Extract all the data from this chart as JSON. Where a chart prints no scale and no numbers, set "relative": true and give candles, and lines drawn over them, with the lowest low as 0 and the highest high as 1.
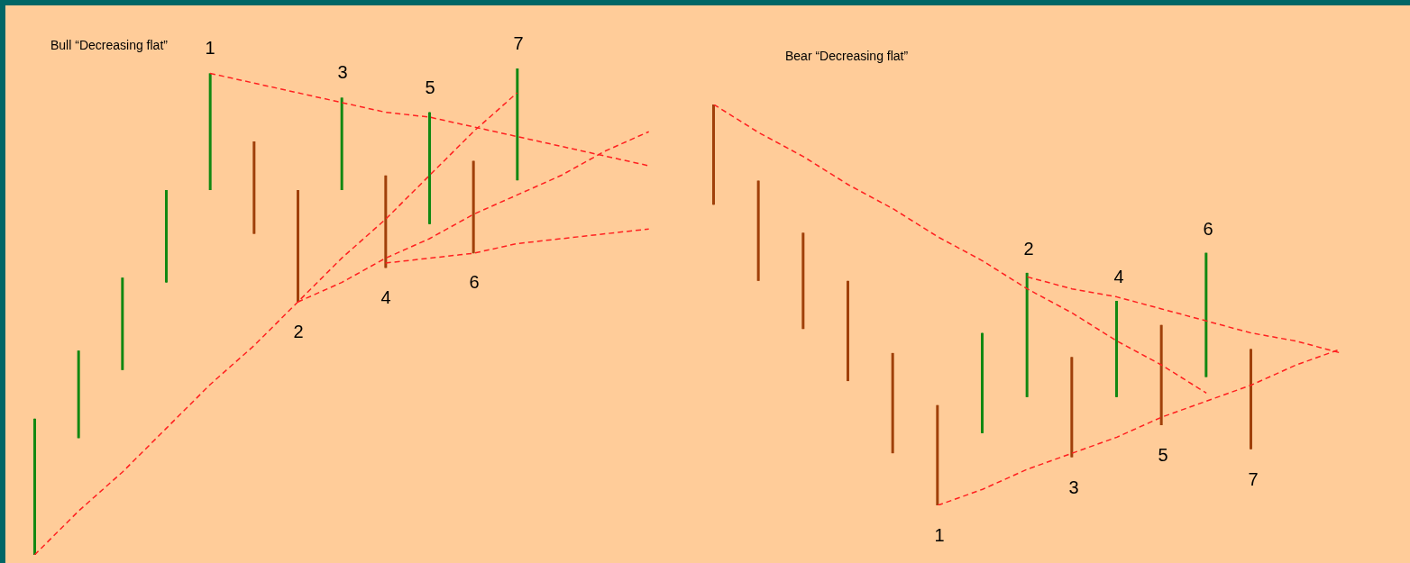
{
  "chart_data": [
    {
      "type": "candlestick",
      "title": "Bull “Decreasing flat”",
      "relative": true,
      "tick_labels": false,
      "categories": [
        null,
        null,
        null,
        null,
        null,
        null,
        null,
        null,
        null,
        null,
        null,
        null,
        null,
        null,
        null
      ],
      "series": [
        {
          "ohlc": [
            [
              0,
              0.28,
              0,
              0.28
            ],
            [
              0.24,
              0.42,
              0.24,
              0.42
            ],
            [
              0.38,
              0.57,
              0.38,
              0.57
            ],
            [
              0.56,
              0.75,
              0.56,
              0.75
            ],
            [
              0.75,
              0.99,
              0.75,
              0.99
            ],
            [
              0.85,
              0.85,
              0.66,
              0.66
            ],
            [
              0.75,
              0.75,
              0.52,
              0.52
            ],
            [
              0.75,
              0.94,
              0.75,
              0.94
            ],
            [
              0.78,
              0.78,
              0.59,
              0.59
            ],
            [
              0.68,
              0.91,
              0.68,
              0.91
            ],
            [
              0.81,
              0.81,
              0.62,
              0.62
            ],
            [
              0.77,
              1,
              0.77,
              1
            ],
            null,
            null,
            null
          ],
          "colors": [
            "#118811",
            "#118811",
            "#118811",
            "#118811",
            "#118811",
            "#a0400a",
            "#a0400a",
            "#118811",
            "#a0400a",
            "#118811",
            "#a0400a",
            "#118811",
            null,
            null,
            null
          ]
        },
        {
          "type": "line",
          "values": [
            null,
            null,
            null,
            null,
            0.99,
            0.97,
            0.95,
            0.93,
            0.91,
            0.9,
            0.88,
            0.86,
            0.84,
            0.82,
            0.8
          ],
          "color": "#ff2020",
          "line_style": "dashed"
        },
        {
          "type": "line",
          "values": [
            0,
            0.09,
            0.17,
            0.26,
            0.35,
            0.43,
            0.52,
            0.61,
            0.69,
            0.78,
            0.87,
            0.95,
            null,
            null,
            null
          ],
          "color": "#ff2020",
          "line_style": "dashed"
        },
        {
          "type": "line",
          "values": [
            null,
            null,
            null,
            null,
            null,
            null,
            0.52,
            0.56,
            0.61,
            0.65,
            0.7,
            0.74,
            0.78,
            0.83,
            0.87
          ],
          "color": "#ff2020",
          "line_style": "dashed"
        },
        {
          "type": "line",
          "values": [
            null,
            null,
            null,
            null,
            null,
            null,
            null,
            null,
            0.6,
            0.61,
            0.62,
            0.64,
            0.65,
            0.66,
            0.67
          ],
          "color": "#ff2020",
          "line_style": "dashed"
        }
      ],
      "annotations": [
        "1",
        "2",
        "3",
        "4",
        "5",
        "6",
        "7"
      ]
    },
    {
      "type": "candlestick",
      "title": "Bear “Decreasing flat”",
      "relative": true,
      "tick_labels": false,
      "categories": [
        null,
        null,
        null,
        null,
        null,
        null,
        null,
        null,
        null,
        null,
        null,
        null,
        null,
        null,
        null
      ],
      "series": [
        {
          "ohlc": [
            [
              1,
              1,
              0.75,
              0.75
            ],
            [
              0.81,
              0.81,
              0.56,
              0.56
            ],
            [
              0.68,
              0.68,
              0.44,
              0.44
            ],
            [
              0.56,
              0.56,
              0.31,
              0.31
            ],
            [
              0.38,
              0.38,
              0.13,
              0.13
            ],
            [
              0.25,
              0.25,
              0,
              0
            ],
            [
              0.18,
              0.43,
              0.18,
              0.43
            ],
            [
              0.27,
              0.58,
              0.27,
              0.58
            ],
            [
              0.37,
              0.37,
              0.12,
              0.12
            ],
            [
              0.27,
              0.51,
              0.27,
              0.51
            ],
            [
              0.45,
              0.45,
              0.2,
              0.2
            ],
            [
              0.32,
              0.63,
              0.32,
              0.63
            ],
            [
              0.39,
              0.39,
              0.14,
              0.14
            ],
            null,
            null
          ],
          "colors": [
            "#a0400a",
            "#a0400a",
            "#a0400a",
            "#a0400a",
            "#a0400a",
            "#a0400a",
            "#118811",
            "#118811",
            "#a0400a",
            "#118811",
            "#a0400a",
            "#118811",
            "#a0400a",
            null,
            null
          ]
        },
        {
          "type": "line",
          "values": [
            1,
            0.93,
            0.87,
            0.8,
            0.74,
            0.67,
            0.61,
            0.54,
            0.48,
            0.41,
            0.35,
            0.28,
            null,
            null,
            null
          ],
          "color": "#ff2020",
          "line_style": "dashed"
        },
        {
          "type": "line",
          "values": [
            null,
            null,
            null,
            null,
            null,
            null,
            null,
            0.57,
            0.54,
            0.52,
            0.49,
            0.46,
            0.43,
            0.41,
            0.38
          ],
          "color": "#ff2020",
          "line_style": "dashed"
        },
        {
          "type": "line",
          "values": [
            null,
            null,
            null,
            null,
            null,
            0,
            0.04,
            0.09,
            0.13,
            0.17,
            0.22,
            0.26,
            0.3,
            0.35,
            0.39
          ],
          "color": "#ff2020",
          "line_style": "dashed"
        }
      ],
      "annotations": [
        "1",
        "2",
        "3",
        "4",
        "5",
        "6",
        "7"
      ]
    }
  ]
}
